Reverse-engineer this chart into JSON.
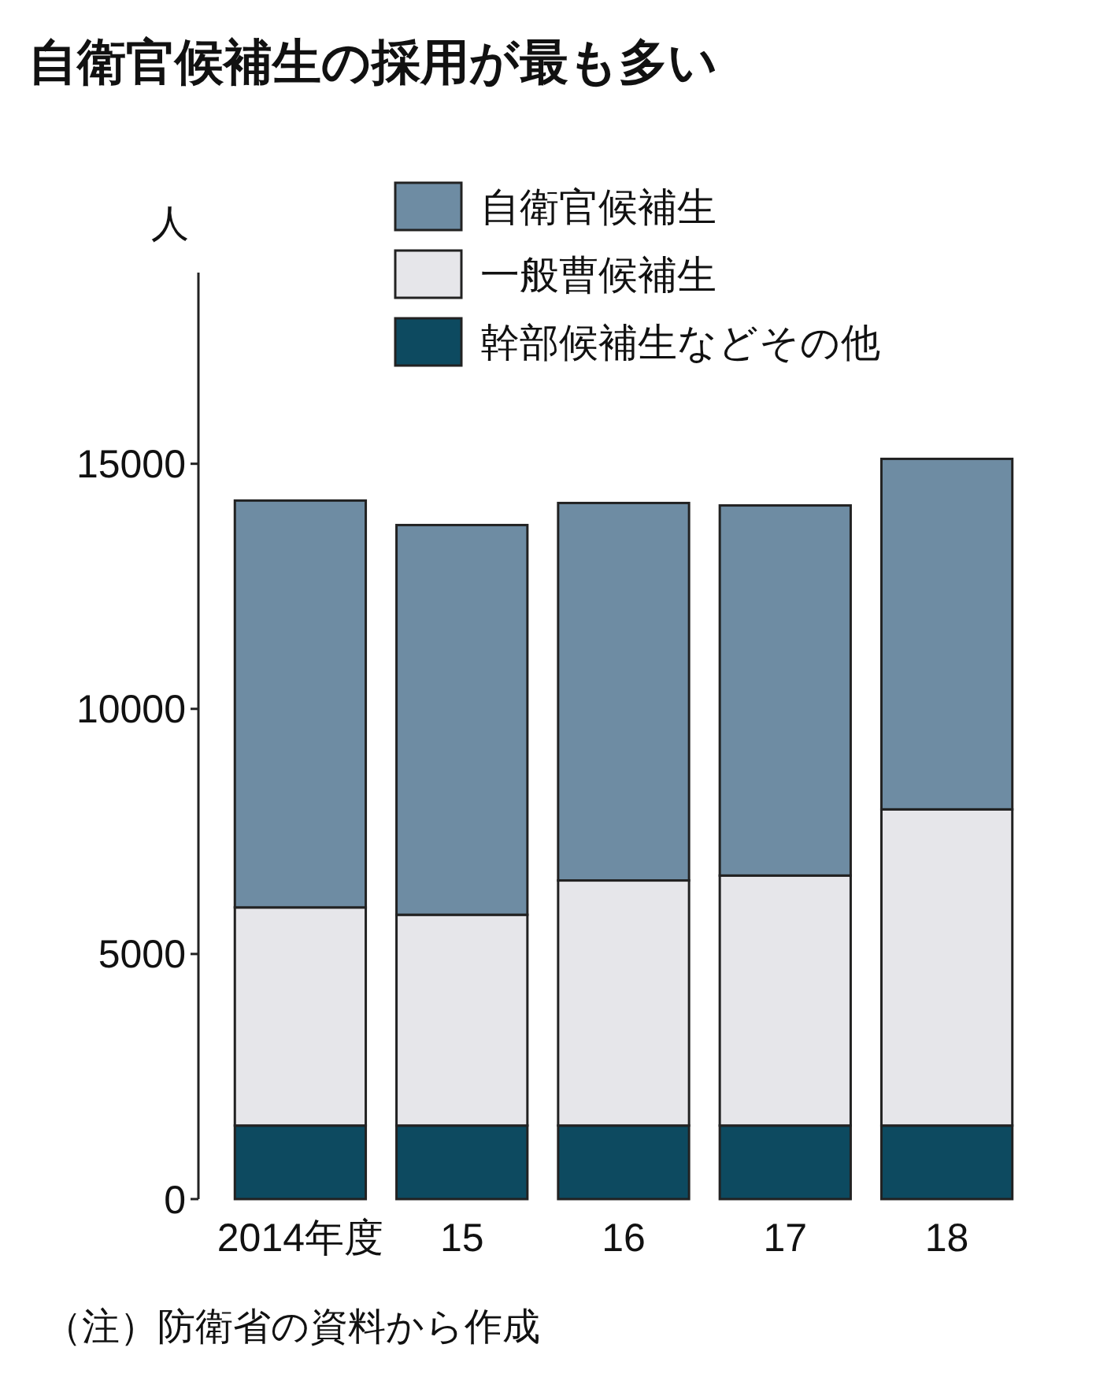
{
  "chart_data": {
    "type": "bar",
    "title": "自衛官候補生の採用が最も多い",
    "ylabel": "人",
    "categories": [
      "2014年度",
      "15",
      "16",
      "17",
      "18"
    ],
    "stacked": true,
    "ylim": [
      0,
      18900
    ],
    "yticks": [
      0,
      5000,
      10000,
      15000
    ],
    "grid": false,
    "legend": "top right",
    "annotations": [
      "（注）防衛省の資料から作成"
    ],
    "series": [
      {
        "name": "幹部候補生などその他",
        "color": "#0d4a60",
        "values": [
          1500,
          1500,
          1500,
          1500,
          1500
        ]
      },
      {
        "name": "一般曹候補生",
        "color": "#e6e6ea",
        "values": [
          4450,
          4300,
          5000,
          5100,
          6450
        ]
      },
      {
        "name": "自衛官候補生",
        "color": "#6e8ca3",
        "values": [
          8300,
          7950,
          7700,
          7550,
          7150
        ]
      }
    ]
  }
}
